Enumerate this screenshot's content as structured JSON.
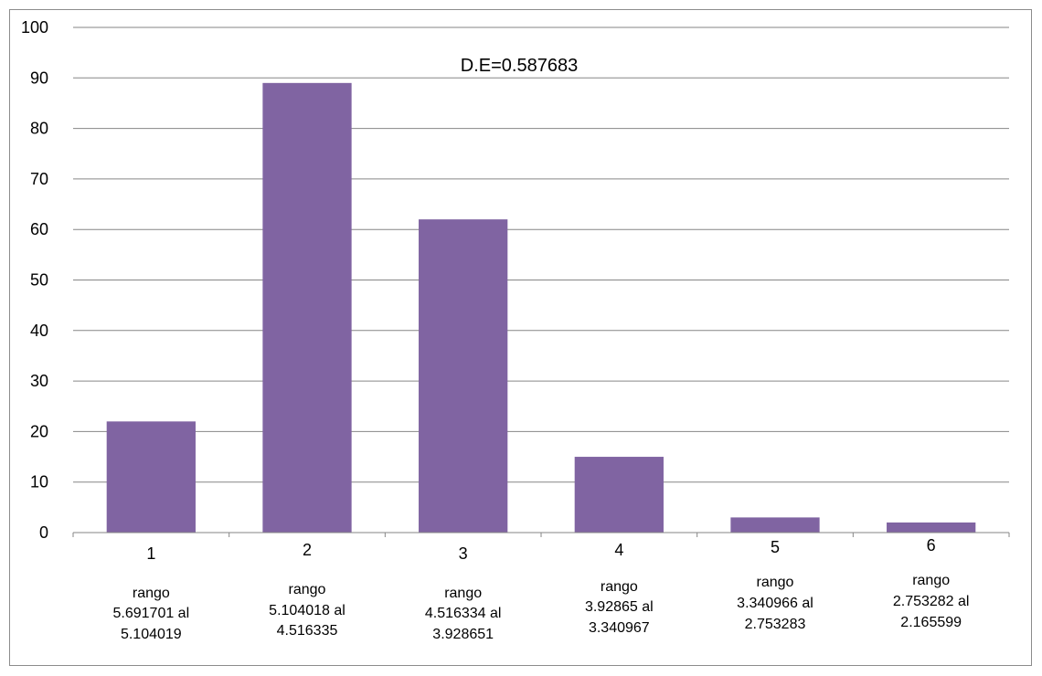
{
  "chart_data": {
    "type": "bar",
    "categories": [
      "1",
      "2",
      "3",
      "4",
      "5",
      "6"
    ],
    "range_labels": [
      [
        "rango",
        "5.691701 al",
        "5.104019"
      ],
      [
        "rango",
        "5.104018 al",
        "4.516335"
      ],
      [
        "rango",
        "4.516334 al",
        "3.928651"
      ],
      [
        "rango",
        "3.92865 al",
        "3.340967"
      ],
      [
        "rango",
        "3.340966 al",
        "2.753283"
      ],
      [
        "rango",
        "2.753282 al",
        "2.165599"
      ]
    ],
    "values": [
      22,
      89,
      62,
      15,
      3,
      2
    ],
    "annotation": "D.E=0.587683",
    "ylim": [
      0,
      100
    ],
    "yticks": [
      0,
      10,
      20,
      30,
      40,
      50,
      60,
      70,
      80,
      90,
      100
    ],
    "grid": true,
    "legend": "none",
    "colors": {
      "bar": "#8064A2",
      "grid": "#868686",
      "axis": "#868686",
      "frame": "#8c8c8c"
    }
  }
}
